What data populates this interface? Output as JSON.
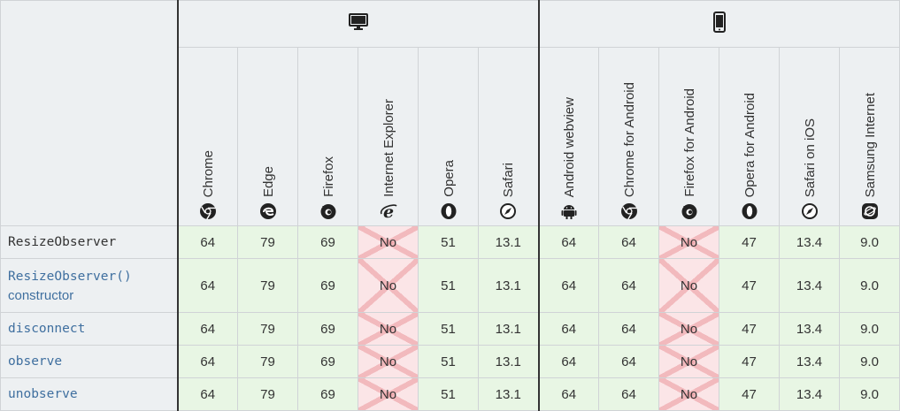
{
  "platforms": {
    "desktop_icon": "desktop-icon",
    "mobile_icon": "mobile-icon"
  },
  "browsers": [
    {
      "name": "Chrome",
      "icon": "chrome-icon"
    },
    {
      "name": "Edge",
      "icon": "edge-icon"
    },
    {
      "name": "Firefox",
      "icon": "firefox-icon"
    },
    {
      "name": "Internet Explorer",
      "icon": "ie-icon"
    },
    {
      "name": "Opera",
      "icon": "opera-icon"
    },
    {
      "name": "Safari",
      "icon": "safari-icon"
    },
    {
      "name": "Android webview",
      "icon": "android-icon"
    },
    {
      "name": "Chrome for Android",
      "icon": "chrome-icon"
    },
    {
      "name": "Firefox for Android",
      "icon": "firefox-icon"
    },
    {
      "name": "Opera for Android",
      "icon": "opera-icon"
    },
    {
      "name": "Safari on iOS",
      "icon": "safari-icon"
    },
    {
      "name": "Samsung Internet",
      "icon": "samsung-icon"
    }
  ],
  "rows": [
    {
      "feature": "ResizeObserver",
      "sub": "",
      "values": [
        "64",
        "79",
        "69",
        "No",
        "51",
        "13.1",
        "64",
        "64",
        "No",
        "47",
        "13.4",
        "9.0"
      ]
    },
    {
      "feature": "ResizeObserver()",
      "sub": "constructor",
      "values": [
        "64",
        "79",
        "69",
        "No",
        "51",
        "13.1",
        "64",
        "64",
        "No",
        "47",
        "13.4",
        "9.0"
      ]
    },
    {
      "feature": "disconnect",
      "sub": "",
      "values": [
        "64",
        "79",
        "69",
        "No",
        "51",
        "13.1",
        "64",
        "64",
        "No",
        "47",
        "13.4",
        "9.0"
      ]
    },
    {
      "feature": "observe",
      "sub": "",
      "values": [
        "64",
        "79",
        "69",
        "No",
        "51",
        "13.1",
        "64",
        "64",
        "No",
        "47",
        "13.4",
        "9.0"
      ]
    },
    {
      "feature": "unobserve",
      "sub": "",
      "values": [
        "64",
        "79",
        "69",
        "No",
        "51",
        "13.1",
        "64",
        "64",
        "No",
        "47",
        "13.4",
        "9.0"
      ]
    }
  ],
  "colors": {
    "supported": "#e8f6e4",
    "unsupported": "#fbe5e7",
    "header": "#edf0f2",
    "link": "#3f6f9f"
  }
}
